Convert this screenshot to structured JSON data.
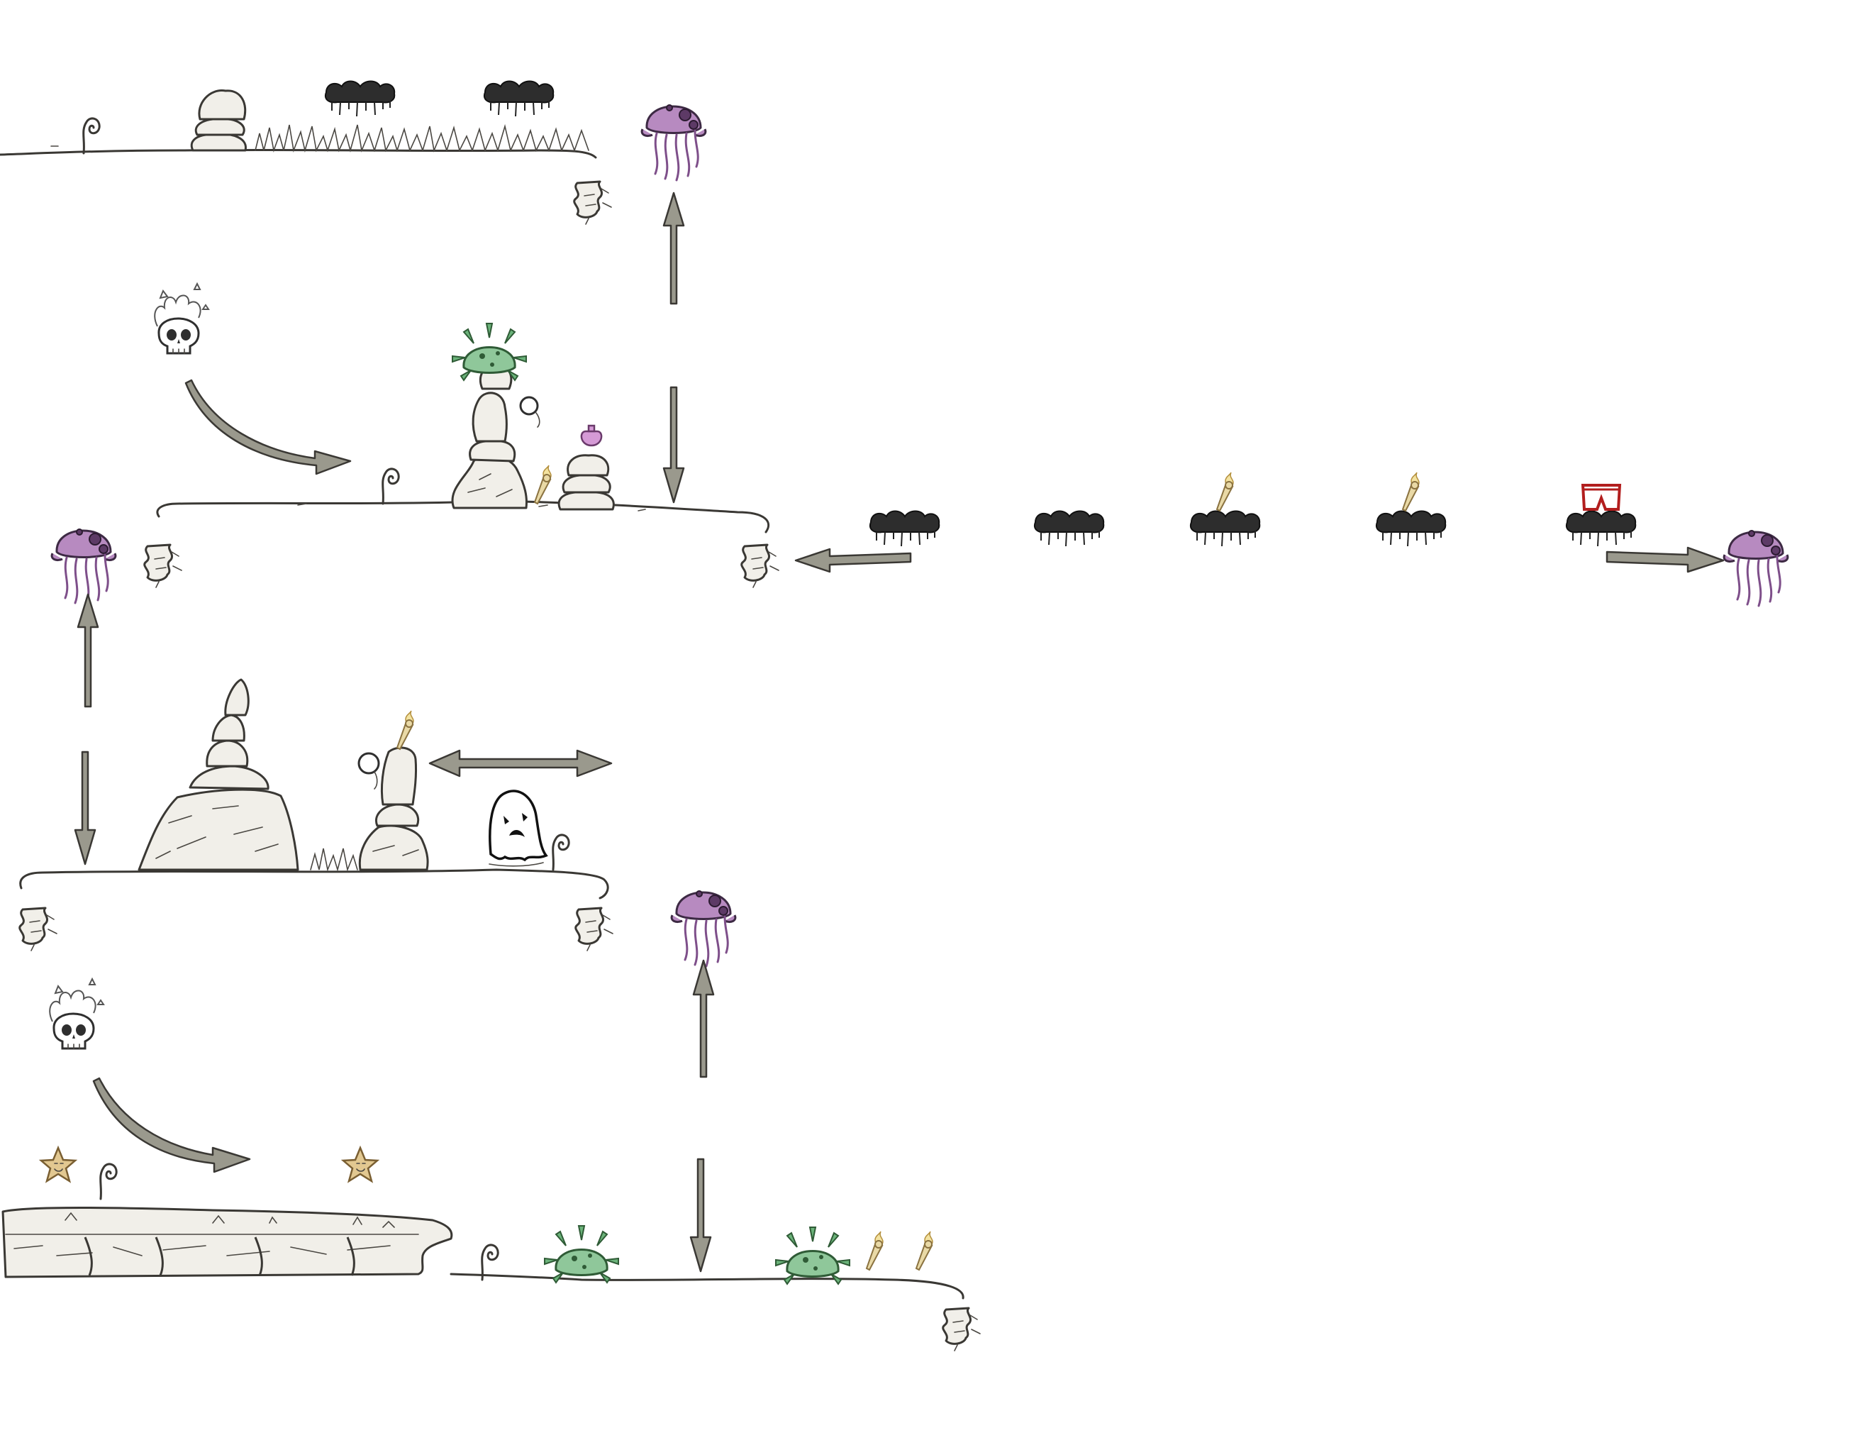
{
  "scene": {
    "description_type": "level-layout-sketch",
    "background_color": "#ffffff",
    "ink_color": "#3a3834"
  },
  "palette": {
    "jellyfish": "#b78ac0",
    "spore_mine": "#8fc79a",
    "torch_flame": "#f3e2a0",
    "star": "#e2c891",
    "pants": "#b21e1e",
    "arrow_fill": "#9a998d",
    "storm_cloud": "#2d2d2d"
  },
  "icons": [
    "jellyfish-enemy-icon",
    "storm-cloud-platform-icon",
    "flaming-skull-icon",
    "spore-mine-icon",
    "torch-pickup-icon",
    "star-pickup-icon",
    "ghost-enemy-icon",
    "curl-sprout-icon",
    "rock-pillar-icon",
    "stacked-boulders-icon",
    "pants-pickup-icon",
    "potion-pickup-icon",
    "path-arrow-icon"
  ]
}
